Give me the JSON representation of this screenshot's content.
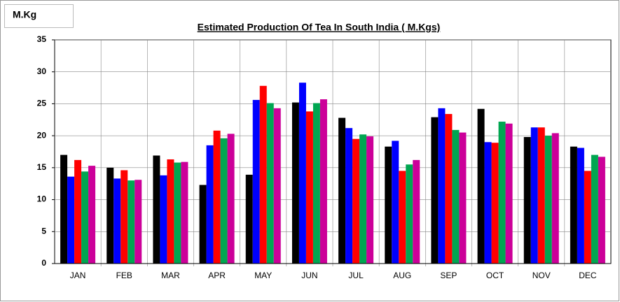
{
  "chart_data": {
    "type": "bar",
    "title": "Estimated Production Of Tea In South India ( M.Kgs)",
    "y_label": "M.Kg",
    "categories": [
      "JAN",
      "FEB",
      "MAR",
      "APR",
      "MAY",
      "JUN",
      "JUL",
      "AUG",
      "SEP",
      "OCT",
      "NOV",
      "DEC"
    ],
    "series": [
      {
        "color": "#000000",
        "values": [
          17.0,
          15.0,
          16.9,
          12.3,
          13.9,
          25.2,
          22.8,
          18.3,
          22.9,
          24.2,
          19.8,
          18.3
        ]
      },
      {
        "color": "#0000ff",
        "values": [
          13.6,
          13.3,
          13.8,
          18.5,
          25.6,
          28.3,
          21.2,
          19.2,
          24.3,
          19.0,
          21.3,
          18.1
        ]
      },
      {
        "color": "#ff0000",
        "values": [
          16.2,
          14.6,
          16.3,
          20.8,
          27.8,
          23.8,
          19.5,
          14.5,
          23.4,
          18.9,
          21.3,
          14.5
        ]
      },
      {
        "color": "#00a651",
        "values": [
          14.4,
          13.0,
          15.8,
          19.6,
          25.1,
          25.1,
          20.2,
          15.5,
          20.9,
          22.2,
          20.0,
          17.0
        ]
      },
      {
        "color": "#cc0099",
        "values": [
          15.3,
          13.1,
          15.9,
          20.3,
          24.3,
          25.7,
          19.9,
          16.2,
          20.5,
          21.9,
          20.4,
          16.7
        ]
      }
    ],
    "ylim": [
      0,
      35
    ],
    "yticks": [
      0,
      5,
      10,
      15,
      20,
      25,
      30,
      35
    ],
    "grid": true
  }
}
